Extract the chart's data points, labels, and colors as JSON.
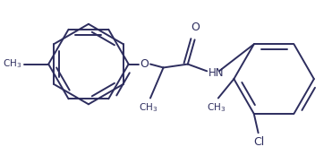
{
  "background_color": "#ffffff",
  "line_color": "#2d2d5e",
  "bond_lw": 1.4,
  "figsize": [
    3.71,
    1.83
  ],
  "dpi": 100,
  "xlim": [
    0,
    371
  ],
  "ylim": [
    0,
    183
  ]
}
